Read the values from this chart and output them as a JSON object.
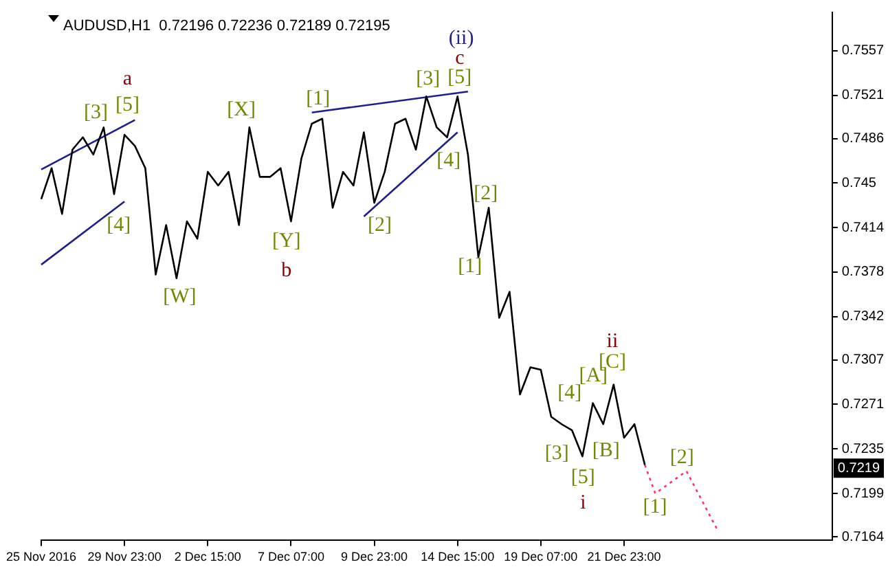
{
  "chart_data": {
    "type": "line",
    "title": "AUDUSD,H1  0.72196 0.72236 0.72189 0.72195",
    "categories": [
      "25 Nov 2016",
      null,
      null,
      null,
      null,
      null,
      null,
      null,
      "29 Nov 23:00",
      null,
      null,
      null,
      null,
      null,
      null,
      null,
      "2 Dec 15:00",
      null,
      null,
      null,
      null,
      null,
      null,
      null,
      "7 Dec 07:00",
      null,
      null,
      null,
      null,
      null,
      null,
      null,
      "9 Dec 23:00",
      null,
      null,
      null,
      null,
      null,
      null,
      null,
      "14 Dec 15:00",
      null,
      null,
      null,
      null,
      null,
      null,
      null,
      "19 Dec 07:00",
      null,
      null,
      null,
      null,
      null,
      null,
      null,
      "21 Dec 23:00",
      null,
      null,
      null,
      null,
      null,
      null,
      null,
      null,
      null,
      null,
      null,
      null,
      null,
      null,
      null,
      null,
      null,
      null,
      null,
      null
    ],
    "ylim": [
      0.7161,
      0.7588
    ],
    "yticks": [
      0.7164,
      0.7199,
      0.7235,
      0.7271,
      0.7307,
      0.7342,
      0.7378,
      0.7414,
      0.745,
      0.7486,
      0.7521,
      0.7557
    ],
    "grid": false,
    "legend": false,
    "marker": "none",
    "series": [
      {
        "color": "#000000",
        "line_style": "solid",
        "values": [
          0.7437,
          0.7462,
          0.7425,
          0.7477,
          0.7487,
          0.7473,
          0.7495,
          0.7441,
          0.7489,
          0.748,
          0.7462,
          0.7376,
          0.7416,
          0.7373,
          0.7419,
          0.7405,
          0.7459,
          0.7448,
          0.7459,
          0.7416,
          0.7495,
          0.7455,
          0.7455,
          0.7462,
          0.7419,
          0.747,
          0.7498,
          0.7502,
          0.743,
          0.7459,
          0.7448,
          0.7491,
          0.7434,
          0.7459,
          0.7498,
          0.7502,
          0.7477,
          0.752,
          0.7495,
          0.7487,
          0.752,
          0.7473,
          0.739,
          0.743,
          0.7341,
          0.7362,
          0.7279,
          0.7301,
          0.7299,
          0.7261,
          0.7255,
          0.725,
          0.7229,
          0.7272,
          0.7255,
          0.7287,
          0.7244,
          0.7255,
          0.7222,
          null,
          null,
          null,
          null,
          null,
          null,
          null,
          null,
          null,
          null,
          null,
          null,
          null,
          null,
          null,
          null,
          null,
          null
        ]
      },
      {
        "color": "#1e1e8c",
        "line_style": "solid",
        "values": [
          0.7461,
          null,
          null,
          null,
          null,
          null,
          null,
          null,
          null,
          0.7501,
          null,
          null,
          null,
          null,
          null,
          null,
          null,
          null,
          null,
          null,
          null,
          null,
          null,
          null,
          null,
          null,
          null,
          null,
          null,
          null,
          null,
          null,
          null,
          null,
          null,
          null,
          null,
          null,
          null,
          null,
          null,
          null,
          null,
          null,
          null,
          null,
          null,
          null,
          null,
          null,
          null,
          null,
          null,
          null,
          null,
          null,
          null,
          null,
          null,
          null,
          null,
          null,
          null,
          null,
          null,
          null,
          null,
          null,
          null,
          null,
          null,
          null,
          null,
          null,
          null,
          null,
          null
        ]
      },
      {
        "color": "#1e1e8c",
        "line_style": "solid",
        "values": [
          0.7384,
          null,
          null,
          null,
          null,
          null,
          null,
          null,
          0.7435,
          null,
          null,
          null,
          null,
          null,
          null,
          null,
          null,
          null,
          null,
          null,
          null,
          null,
          null,
          null,
          null,
          null,
          null,
          null,
          null,
          null,
          null,
          null,
          null,
          null,
          null,
          null,
          null,
          null,
          null,
          null,
          null,
          null,
          null,
          null,
          null,
          null,
          null,
          null,
          null,
          null,
          null,
          null,
          null,
          null,
          null,
          null,
          null,
          null,
          null,
          null,
          null,
          null,
          null,
          null,
          null,
          null,
          null,
          null,
          null,
          null,
          null,
          null,
          null,
          null,
          null,
          null,
          null
        ]
      },
      {
        "color": "#1e1e8c",
        "line_style": "solid",
        "values": [
          null,
          null,
          null,
          null,
          null,
          null,
          null,
          null,
          null,
          null,
          null,
          null,
          null,
          null,
          null,
          null,
          null,
          null,
          null,
          null,
          null,
          null,
          null,
          null,
          null,
          null,
          0.7507,
          null,
          null,
          null,
          null,
          null,
          null,
          null,
          null,
          null,
          null,
          null,
          null,
          null,
          null,
          0.7524,
          null,
          null,
          null,
          null,
          null,
          null,
          null,
          null,
          null,
          null,
          null,
          null,
          null,
          null,
          null,
          null,
          null,
          null,
          null,
          null,
          null,
          null,
          null,
          null,
          null,
          null,
          null,
          null,
          null,
          null,
          null,
          null,
          null,
          null,
          null
        ]
      },
      {
        "color": "#1e1e8c",
        "line_style": "solid",
        "values": [
          null,
          null,
          null,
          null,
          null,
          null,
          null,
          null,
          null,
          null,
          null,
          null,
          null,
          null,
          null,
          null,
          null,
          null,
          null,
          null,
          null,
          null,
          null,
          null,
          null,
          null,
          null,
          null,
          null,
          null,
          null,
          0.7423,
          null,
          null,
          null,
          null,
          null,
          null,
          null,
          null,
          0.7491,
          null,
          null,
          null,
          null,
          null,
          null,
          null,
          null,
          null,
          null,
          null,
          null,
          null,
          null,
          null,
          null,
          null,
          null,
          null,
          null,
          null,
          null,
          null,
          null,
          null,
          null,
          null,
          null,
          null,
          null,
          null,
          null,
          null,
          null,
          null,
          null
        ]
      },
      {
        "color": "#ff3366",
        "line_style": "dotted",
        "values": [
          null,
          null,
          null,
          null,
          null,
          null,
          null,
          null,
          null,
          null,
          null,
          null,
          null,
          null,
          null,
          null,
          null,
          null,
          null,
          null,
          null,
          null,
          null,
          null,
          null,
          null,
          null,
          null,
          null,
          null,
          null,
          null,
          null,
          null,
          null,
          null,
          null,
          null,
          null,
          null,
          null,
          null,
          null,
          null,
          null,
          null,
          null,
          null,
          null,
          null,
          null,
          null,
          null,
          null,
          null,
          null,
          null,
          null,
          0.7222,
          0.7199,
          null,
          null,
          0.7217,
          null,
          null,
          0.7169,
          null,
          null,
          null,
          null,
          null,
          null,
          null,
          null,
          null,
          null,
          null
        ]
      }
    ],
    "annotations": [
      "[3]",
      "[5]",
      "a",
      "[4]",
      "[W]",
      "[X]",
      "[Y]",
      "b",
      "[1]",
      "[2]",
      "[3]",
      "[4]",
      "(ii)",
      "c",
      "[5]",
      "[2]",
      "[1]",
      "ii",
      "[C]",
      "[A]",
      "[4]",
      "[3]",
      "[B]",
      "[5]",
      "i",
      "[1]",
      "[2]",
      "0.7219"
    ]
  }
}
